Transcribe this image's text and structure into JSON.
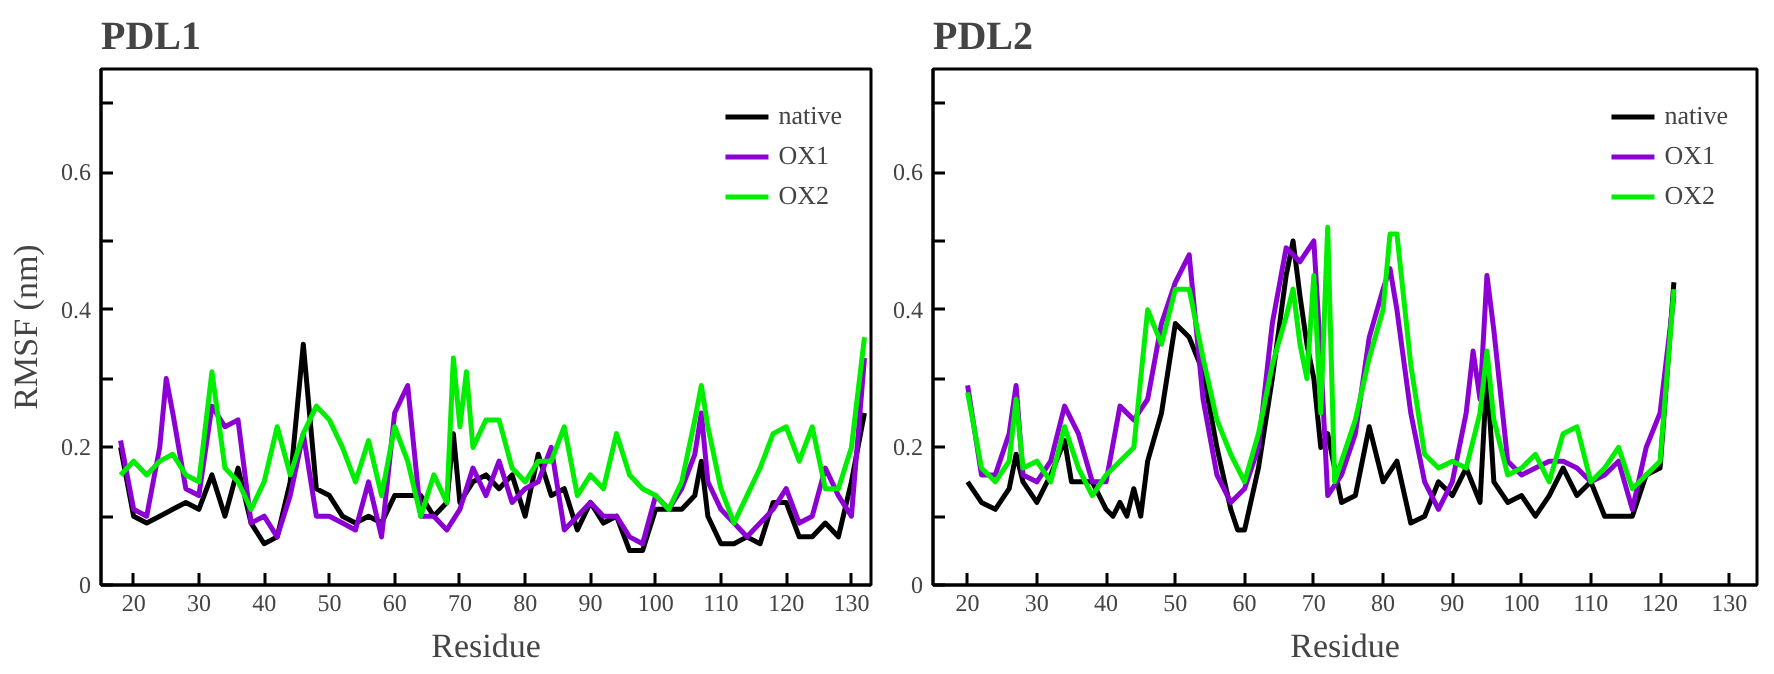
{
  "chart_data": [
    {
      "type": "line",
      "title": "PDL1",
      "xlabel": "Residue",
      "ylabel": "RMSF (nm)",
      "xlim": [
        15,
        133
      ],
      "xticks": [
        20,
        30,
        40,
        50,
        60,
        70,
        80,
        90,
        100,
        110,
        120,
        130
      ],
      "ylim": [
        0,
        0.75
      ],
      "yticks": [
        0,
        {
          "value": 0.1,
          "label": null
        },
        {
          "value": 0.2,
          "label": "0.2"
        },
        {
          "value": 0.3,
          "label": null
        },
        {
          "value": 0.4,
          "label": "0.4"
        },
        {
          "value": 0.5,
          "label": null
        },
        {
          "value": 0.6,
          "label": "0.6"
        },
        {
          "value": 0.7,
          "label": null
        }
      ],
      "grid": false,
      "legend": "top right",
      "marker": "none",
      "line_style": "solid",
      "series": [
        {
          "name": "native",
          "color": "#000000",
          "x": [
            18,
            20,
            22,
            24,
            26,
            28,
            30,
            32,
            34,
            36,
            38,
            40,
            42,
            44,
            46,
            48,
            50,
            52,
            54,
            56,
            58,
            60,
            62,
            64,
            66,
            68,
            69,
            70,
            72,
            74,
            76,
            78,
            80,
            82,
            84,
            86,
            88,
            90,
            92,
            94,
            96,
            98,
            100,
            102,
            104,
            106,
            107,
            108,
            110,
            112,
            114,
            116,
            118,
            120,
            122,
            124,
            126,
            128,
            130,
            132
          ],
          "values": [
            0.2,
            0.1,
            0.09,
            0.1,
            0.11,
            0.12,
            0.11,
            0.16,
            0.1,
            0.17,
            0.09,
            0.06,
            0.07,
            0.15,
            0.35,
            0.14,
            0.13,
            0.1,
            0.09,
            0.1,
            0.09,
            0.13,
            0.13,
            0.13,
            0.1,
            0.12,
            0.22,
            0.12,
            0.15,
            0.16,
            0.14,
            0.16,
            0.1,
            0.19,
            0.13,
            0.14,
            0.08,
            0.12,
            0.09,
            0.1,
            0.05,
            0.05,
            0.11,
            0.11,
            0.11,
            0.13,
            0.18,
            0.1,
            0.06,
            0.06,
            0.07,
            0.06,
            0.12,
            0.12,
            0.07,
            0.07,
            0.09,
            0.07,
            0.15,
            0.25
          ]
        },
        {
          "name": "OX1",
          "color": "#8b00d3",
          "x": [
            18,
            20,
            22,
            24,
            25,
            26,
            28,
            30,
            32,
            34,
            36,
            38,
            40,
            42,
            44,
            46,
            48,
            50,
            52,
            54,
            56,
            58,
            60,
            62,
            64,
            66,
            68,
            70,
            72,
            74,
            76,
            78,
            80,
            82,
            84,
            86,
            88,
            90,
            92,
            94,
            96,
            98,
            100,
            102,
            104,
            106,
            107,
            108,
            110,
            112,
            114,
            116,
            118,
            120,
            122,
            124,
            126,
            128,
            130,
            132
          ],
          "values": [
            0.21,
            0.11,
            0.1,
            0.2,
            0.3,
            0.25,
            0.14,
            0.13,
            0.26,
            0.23,
            0.24,
            0.09,
            0.1,
            0.07,
            0.13,
            0.22,
            0.1,
            0.1,
            0.09,
            0.08,
            0.15,
            0.07,
            0.25,
            0.29,
            0.1,
            0.1,
            0.08,
            0.11,
            0.17,
            0.13,
            0.18,
            0.12,
            0.14,
            0.15,
            0.2,
            0.08,
            0.1,
            0.12,
            0.1,
            0.1,
            0.07,
            0.06,
            0.13,
            0.11,
            0.14,
            0.19,
            0.25,
            0.15,
            0.11,
            0.09,
            0.07,
            0.09,
            0.11,
            0.14,
            0.09,
            0.1,
            0.17,
            0.13,
            0.1,
            0.33
          ]
        },
        {
          "name": "OX2",
          "color": "#00ee00",
          "x": [
            18,
            20,
            22,
            24,
            26,
            28,
            30,
            32,
            34,
            36,
            38,
            40,
            42,
            44,
            46,
            48,
            50,
            52,
            54,
            56,
            58,
            60,
            62,
            64,
            66,
            68,
            69,
            70,
            71,
            72,
            74,
            76,
            78,
            80,
            82,
            84,
            86,
            88,
            90,
            92,
            94,
            96,
            98,
            100,
            102,
            104,
            106,
            107,
            108,
            110,
            112,
            114,
            116,
            118,
            120,
            122,
            124,
            126,
            128,
            130,
            132
          ],
          "values": [
            0.16,
            0.18,
            0.16,
            0.18,
            0.19,
            0.16,
            0.15,
            0.31,
            0.17,
            0.15,
            0.11,
            0.15,
            0.23,
            0.16,
            0.22,
            0.26,
            0.24,
            0.2,
            0.15,
            0.21,
            0.13,
            0.23,
            0.18,
            0.1,
            0.16,
            0.12,
            0.33,
            0.23,
            0.31,
            0.2,
            0.24,
            0.24,
            0.17,
            0.15,
            0.18,
            0.18,
            0.23,
            0.13,
            0.16,
            0.14,
            0.22,
            0.16,
            0.14,
            0.13,
            0.11,
            0.15,
            0.24,
            0.29,
            0.23,
            0.14,
            0.09,
            0.13,
            0.17,
            0.22,
            0.23,
            0.18,
            0.23,
            0.14,
            0.14,
            0.2,
            0.36
          ]
        }
      ]
    },
    {
      "type": "line",
      "title": "PDL2",
      "xlabel": "Residue",
      "xlim": [
        15,
        134
      ],
      "xticks": [
        20,
        30,
        40,
        50,
        60,
        70,
        80,
        90,
        100,
        110,
        120,
        130
      ],
      "ylim": [
        0,
        0.75
      ],
      "yticks": [
        0,
        {
          "value": 0.1,
          "label": null
        },
        {
          "value": 0.2,
          "label": "0.2"
        },
        {
          "value": 0.3,
          "label": null
        },
        {
          "value": 0.4,
          "label": "0.4"
        },
        {
          "value": 0.5,
          "label": null
        },
        {
          "value": 0.6,
          "label": "0.6"
        },
        {
          "value": 0.7,
          "label": null
        }
      ],
      "grid": false,
      "legend": "top right",
      "marker": "none",
      "line_style": "solid",
      "series": [
        {
          "name": "native",
          "color": "#000000",
          "x": [
            20,
            22,
            24,
            26,
            27,
            28,
            30,
            32,
            34,
            35,
            36,
            38,
            40,
            41,
            42,
            43,
            44,
            45,
            46,
            48,
            50,
            52,
            54,
            56,
            58,
            59,
            60,
            62,
            64,
            66,
            67,
            68,
            69,
            70,
            71,
            72,
            74,
            76,
            78,
            80,
            82,
            84,
            86,
            88,
            90,
            92,
            94,
            95,
            96,
            98,
            100,
            102,
            104,
            106,
            108,
            110,
            112,
            114,
            116,
            118,
            120,
            122
          ],
          "values": [
            0.15,
            0.12,
            0.11,
            0.14,
            0.19,
            0.15,
            0.12,
            0.16,
            0.21,
            0.15,
            0.15,
            0.15,
            0.11,
            0.1,
            0.12,
            0.1,
            0.14,
            0.1,
            0.18,
            0.25,
            0.38,
            0.36,
            0.31,
            0.2,
            0.11,
            0.08,
            0.08,
            0.17,
            0.3,
            0.45,
            0.5,
            0.42,
            0.35,
            0.3,
            0.2,
            0.22,
            0.12,
            0.13,
            0.23,
            0.15,
            0.18,
            0.09,
            0.1,
            0.15,
            0.13,
            0.17,
            0.12,
            0.31,
            0.15,
            0.12,
            0.13,
            0.1,
            0.13,
            0.17,
            0.13,
            0.15,
            0.1,
            0.1,
            0.1,
            0.16,
            0.17,
            0.44
          ]
        },
        {
          "name": "OX1",
          "color": "#8b00d3",
          "x": [
            20,
            22,
            24,
            26,
            27,
            28,
            30,
            32,
            34,
            36,
            38,
            40,
            42,
            44,
            46,
            48,
            50,
            52,
            54,
            56,
            58,
            60,
            62,
            64,
            66,
            68,
            70,
            71,
            72,
            74,
            76,
            78,
            80,
            81,
            82,
            84,
            86,
            88,
            90,
            92,
            93,
            94,
            95,
            96,
            98,
            100,
            102,
            104,
            106,
            108,
            110,
            112,
            114,
            116,
            118,
            120,
            122
          ],
          "values": [
            0.29,
            0.16,
            0.16,
            0.22,
            0.29,
            0.16,
            0.15,
            0.18,
            0.26,
            0.22,
            0.15,
            0.15,
            0.26,
            0.24,
            0.27,
            0.38,
            0.44,
            0.48,
            0.27,
            0.16,
            0.12,
            0.14,
            0.2,
            0.38,
            0.49,
            0.47,
            0.5,
            0.33,
            0.13,
            0.16,
            0.22,
            0.36,
            0.43,
            0.46,
            0.4,
            0.25,
            0.15,
            0.11,
            0.15,
            0.25,
            0.34,
            0.27,
            0.45,
            0.37,
            0.18,
            0.16,
            0.17,
            0.18,
            0.18,
            0.17,
            0.15,
            0.16,
            0.18,
            0.11,
            0.2,
            0.25,
            0.42
          ]
        },
        {
          "name": "OX2",
          "color": "#00ee00",
          "x": [
            20,
            22,
            24,
            26,
            27,
            28,
            30,
            32,
            34,
            36,
            38,
            40,
            42,
            44,
            46,
            48,
            50,
            52,
            54,
            56,
            58,
            60,
            62,
            64,
            66,
            67,
            68,
            69,
            70,
            71,
            72,
            73,
            74,
            76,
            78,
            80,
            81,
            82,
            84,
            86,
            88,
            90,
            92,
            94,
            95,
            96,
            98,
            100,
            102,
            104,
            106,
            108,
            110,
            112,
            114,
            116,
            118,
            120,
            122
          ],
          "values": [
            0.28,
            0.17,
            0.15,
            0.18,
            0.27,
            0.17,
            0.18,
            0.15,
            0.23,
            0.17,
            0.13,
            0.16,
            0.18,
            0.2,
            0.4,
            0.35,
            0.43,
            0.43,
            0.33,
            0.24,
            0.19,
            0.15,
            0.22,
            0.32,
            0.39,
            0.43,
            0.35,
            0.3,
            0.45,
            0.25,
            0.52,
            0.15,
            0.18,
            0.24,
            0.33,
            0.4,
            0.51,
            0.51,
            0.32,
            0.19,
            0.17,
            0.18,
            0.17,
            0.25,
            0.34,
            0.24,
            0.16,
            0.17,
            0.19,
            0.15,
            0.22,
            0.23,
            0.15,
            0.17,
            0.2,
            0.14,
            0.16,
            0.18,
            0.43
          ]
        }
      ]
    }
  ]
}
